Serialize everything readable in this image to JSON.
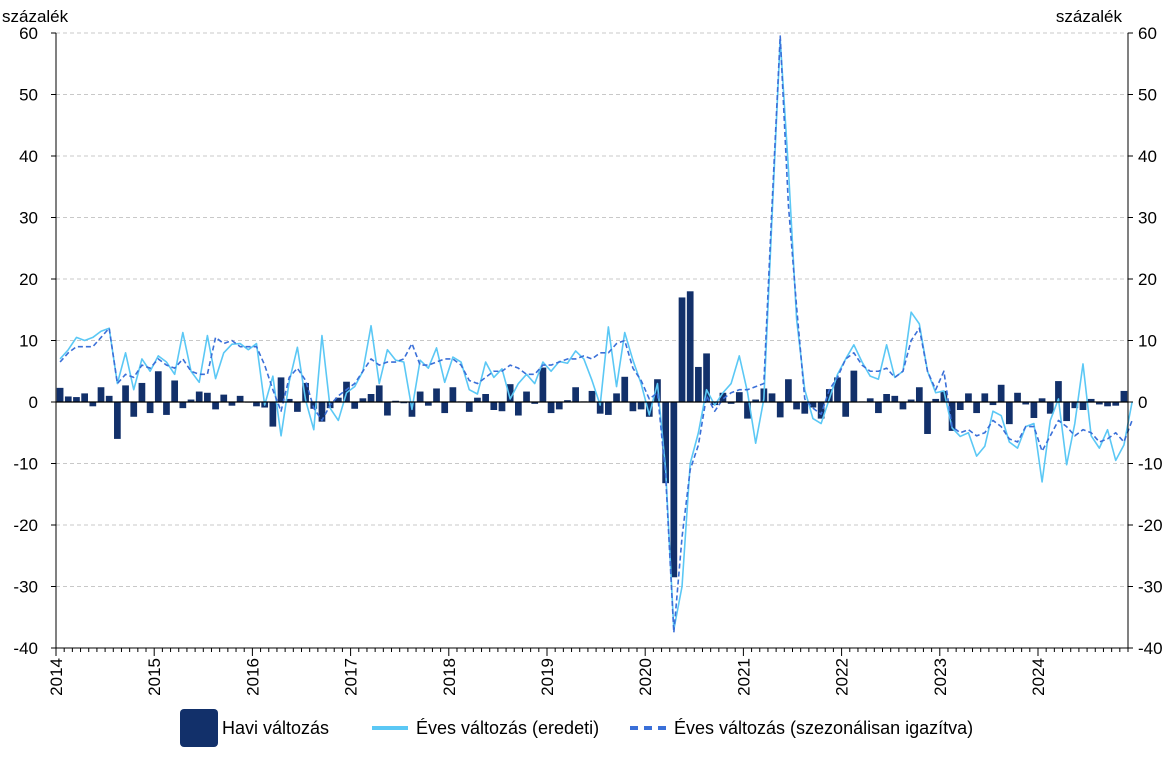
{
  "chart_data": {
    "type": "bar",
    "unit_left": "százalék",
    "unit_right": "százalék",
    "ylim": [
      -40,
      60
    ],
    "yticks": [
      "60",
      "50",
      "40",
      "30",
      "20",
      "10",
      "0",
      "-10",
      "-20",
      "-30",
      "-40"
    ],
    "ytick_values": [
      60,
      50,
      40,
      30,
      20,
      10,
      0,
      -10,
      -20,
      -30,
      -40
    ],
    "xticks": [
      "2014",
      "2015",
      "2016",
      "2017",
      "2018",
      "2019",
      "2020",
      "2021",
      "2022",
      "2023",
      "2024"
    ],
    "x_start": "2014-01",
    "grid": true,
    "legend_position": "bottom",
    "series": [
      {
        "name": "Havi változás",
        "type": "bar",
        "color": "#12306a",
        "values": [
          2.3,
          0.9,
          0.8,
          1.4,
          -0.7,
          2.4,
          1.0,
          -6.0,
          2.7,
          -2.4,
          3.1,
          -1.8,
          5.0,
          -2.1,
          3.5,
          -1.0,
          0.4,
          1.7,
          1.5,
          -1.2,
          1.2,
          -0.6,
          1.0,
          -0.1,
          -0.7,
          -0.9,
          -4.0,
          4.0,
          0.5,
          -1.6,
          3.1,
          -1.1,
          -3.2,
          -1.0,
          0.7,
          3.3,
          -1.1,
          0.6,
          1.3,
          2.7,
          -2.2,
          0.2,
          -0.2,
          -2.4,
          1.7,
          -0.6,
          2.2,
          -1.8,
          2.4,
          0.1,
          -1.6,
          0.7,
          1.3,
          -1.3,
          -1.5,
          2.9,
          -2.2,
          1.7,
          -0.3,
          5.6,
          -1.8,
          -1.2,
          0.3,
          2.4,
          0.1,
          1.8,
          -1.9,
          -2.1,
          1.4,
          4.1,
          -1.5,
          -1.2,
          -2.4,
          3.7,
          -13.2,
          -28.5,
          17.0,
          18.0,
          5.7,
          7.9,
          -0.5,
          1.5,
          -0.3,
          1.6,
          -2.7,
          0.4,
          2.2,
          1.4,
          -2.5,
          3.7,
          -1.2,
          -1.9,
          -0.9,
          -2.7,
          2.1,
          4.0,
          -2.4,
          5.1,
          0.1,
          0.6,
          -1.8,
          1.3,
          1.0,
          -1.2,
          0.4,
          2.4,
          -5.2,
          0.5,
          1.8,
          -4.7,
          -1.3,
          1.4,
          -1.8,
          1.4,
          -0.5,
          2.8,
          -3.6,
          1.5,
          -0.4,
          -2.6,
          0.6,
          -1.9,
          3.4,
          -3.1,
          -1.0,
          -1.3,
          0.5,
          -0.4,
          -0.7,
          -0.6,
          1.8
        ]
      },
      {
        "name": "Éves változás (eredeti)",
        "type": "line",
        "color": "#5bc8f5",
        "values": [
          7.0,
          8.5,
          10.5,
          10.0,
          10.5,
          11.5,
          12.0,
          3.0,
          8.0,
          2.0,
          7.0,
          5.0,
          7.5,
          6.5,
          4.5,
          11.3,
          5.0,
          3.2,
          10.8,
          3.8,
          8.0,
          9.4,
          9.5,
          8.5,
          9.5,
          -0.5,
          4.2,
          -5.5,
          3.3,
          8.9,
          0.3,
          -4.5,
          10.8,
          -1.0,
          -3.0,
          1.5,
          2.5,
          5.0,
          12.4,
          3.0,
          8.5,
          6.8,
          6.5,
          -1.2,
          6.8,
          5.5,
          8.8,
          3.2,
          7.3,
          6.5,
          2.0,
          1.3,
          6.5,
          4.0,
          5.4,
          0.5,
          3.0,
          4.5,
          3.0,
          6.5,
          5.0,
          6.6,
          6.3,
          8.3,
          7.0,
          3.5,
          -0.5,
          12.2,
          2.5,
          11.3,
          6.8,
          3.0,
          -2.1,
          3.0,
          -11.0,
          -37.0,
          -30.0,
          -10.0,
          -5.0,
          2.0,
          -0.5,
          1.5,
          3.0,
          7.5,
          1.6,
          -6.7,
          0.5,
          30.0,
          59.0,
          38.0,
          13.5,
          2.0,
          -2.7,
          -3.5,
          0.5,
          4.5,
          7.0,
          9.3,
          6.5,
          4.2,
          3.7,
          9.3,
          4.0,
          5.0,
          14.6,
          12.7,
          5.0,
          1.5,
          1.8,
          -4.2,
          -5.6,
          -5.0,
          -8.8,
          -7.2,
          -1.5,
          -2.2,
          -6.5,
          -7.5,
          -4.0,
          -3.5,
          -13.0,
          -3.0,
          0.5,
          -10.2,
          -3.5,
          6.2,
          -5.5,
          -7.5,
          -4.5,
          -9.5,
          -7.0,
          0.0
        ]
      },
      {
        "name": "Éves változás (szezonálisan igazítva)",
        "type": "line",
        "color": "#3a6fd8",
        "values": [
          6.5,
          8.0,
          9.0,
          9.0,
          9.0,
          10.5,
          12.0,
          3.0,
          4.5,
          4.0,
          6.0,
          5.5,
          7.0,
          6.0,
          5.5,
          7.0,
          5.0,
          4.5,
          4.5,
          10.5,
          9.5,
          10.0,
          9.0,
          9.0,
          9.0,
          6.0,
          2.0,
          -1.5,
          4.0,
          5.5,
          3.5,
          -1.0,
          -3.0,
          -0.5,
          1.0,
          2.0,
          3.0,
          5.0,
          7.0,
          6.0,
          6.5,
          6.5,
          7.0,
          9.5,
          6.0,
          6.0,
          6.5,
          7.0,
          7.0,
          6.0,
          3.5,
          3.0,
          4.0,
          5.0,
          5.0,
          6.0,
          5.5,
          4.5,
          4.5,
          6.0,
          6.0,
          6.5,
          7.0,
          7.0,
          7.5,
          7.0,
          8.0,
          8.0,
          9.5,
          10.0,
          5.5,
          3.5,
          0.5,
          1.5,
          -12.0,
          -37.5,
          -22.0,
          -11.0,
          -7.0,
          1.0,
          -1.5,
          0.5,
          1.5,
          2.0,
          2.0,
          2.5,
          3.0,
          32.0,
          59.5,
          32.0,
          15.5,
          0.5,
          -1.0,
          -2.0,
          2.0,
          4.0,
          7.0,
          8.0,
          6.0,
          5.0,
          5.0,
          5.5,
          4.0,
          5.0,
          10.0,
          12.0,
          5.0,
          2.0,
          5.0,
          -4.0,
          -5.0,
          -4.5,
          -5.5,
          -5.0,
          -3.0,
          -4.0,
          -6.0,
          -6.5,
          -4.0,
          -4.0,
          -8.0,
          -5.5,
          -3.0,
          -4.0,
          -5.5,
          -4.5,
          -5.0,
          -6.5,
          -6.0,
          -5.0,
          -6.5,
          -3.0
        ]
      }
    ]
  }
}
